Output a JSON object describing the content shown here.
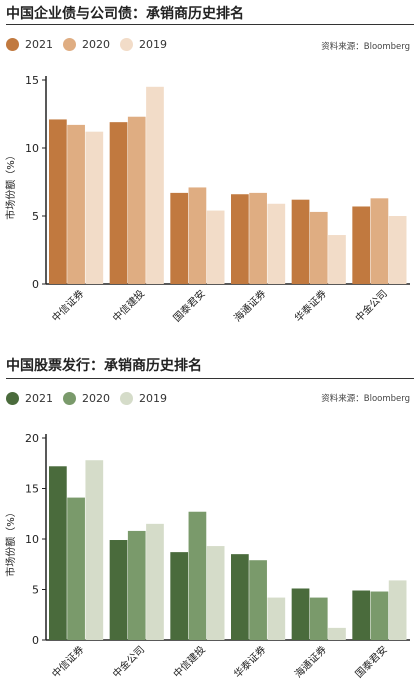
{
  "charts": [
    {
      "title": "中国企业债与公司债：承销商历史排名",
      "source": "资料来源：Bloomberg",
      "legend": [
        "2021",
        "2020",
        "2019"
      ],
      "colors": [
        "#c1793f",
        "#dfad82",
        "#f2dcc8"
      ],
      "ylabel": "市场份额（%）"
    },
    {
      "title": "中国股票发行：承销商历史排名",
      "source": "资料来源：Bloomberg",
      "legend": [
        "2021",
        "2020",
        "2019"
      ],
      "colors": [
        "#4a6b3c",
        "#7a9a6b",
        "#d5dcc9"
      ],
      "ylabel": "市场份额（%）"
    }
  ],
  "chart_data": [
    {
      "type": "bar",
      "title": "中国企业债与公司债：承销商历史排名",
      "categories": [
        "中信证券",
        "中信建投",
        "国泰君安",
        "海通证券",
        "华泰证券",
        "中金公司"
      ],
      "series": [
        {
          "name": "2021",
          "values": [
            12.1,
            11.9,
            6.7,
            6.6,
            6.2,
            5.7
          ]
        },
        {
          "name": "2020",
          "values": [
            11.7,
            12.3,
            7.1,
            6.7,
            5.3,
            6.3
          ]
        },
        {
          "name": "2019",
          "values": [
            11.2,
            14.5,
            5.4,
            5.9,
            3.6,
            5.0
          ]
        }
      ],
      "ylabel": "市场份额（%）",
      "ylim": [
        0,
        15
      ],
      "yticks": [
        0,
        5,
        10,
        15
      ],
      "grid": false,
      "legend": "top-left"
    },
    {
      "type": "bar",
      "title": "中国股票发行：承销商历史排名",
      "categories": [
        "中信证券",
        "中金公司",
        "中信建投",
        "华泰证券",
        "海通证券",
        "国泰君安"
      ],
      "series": [
        {
          "name": "2021",
          "values": [
            17.2,
            9.9,
            8.7,
            8.5,
            5.1,
            4.9
          ]
        },
        {
          "name": "2020",
          "values": [
            14.1,
            10.8,
            12.7,
            7.9,
            4.2,
            4.8
          ]
        },
        {
          "name": "2019",
          "values": [
            17.8,
            11.5,
            9.3,
            4.2,
            1.2,
            5.9
          ]
        }
      ],
      "ylabel": "市场份额（%）",
      "ylim": [
        0,
        20
      ],
      "yticks": [
        0,
        5,
        10,
        15,
        20
      ],
      "grid": false,
      "legend": "top-left"
    }
  ]
}
